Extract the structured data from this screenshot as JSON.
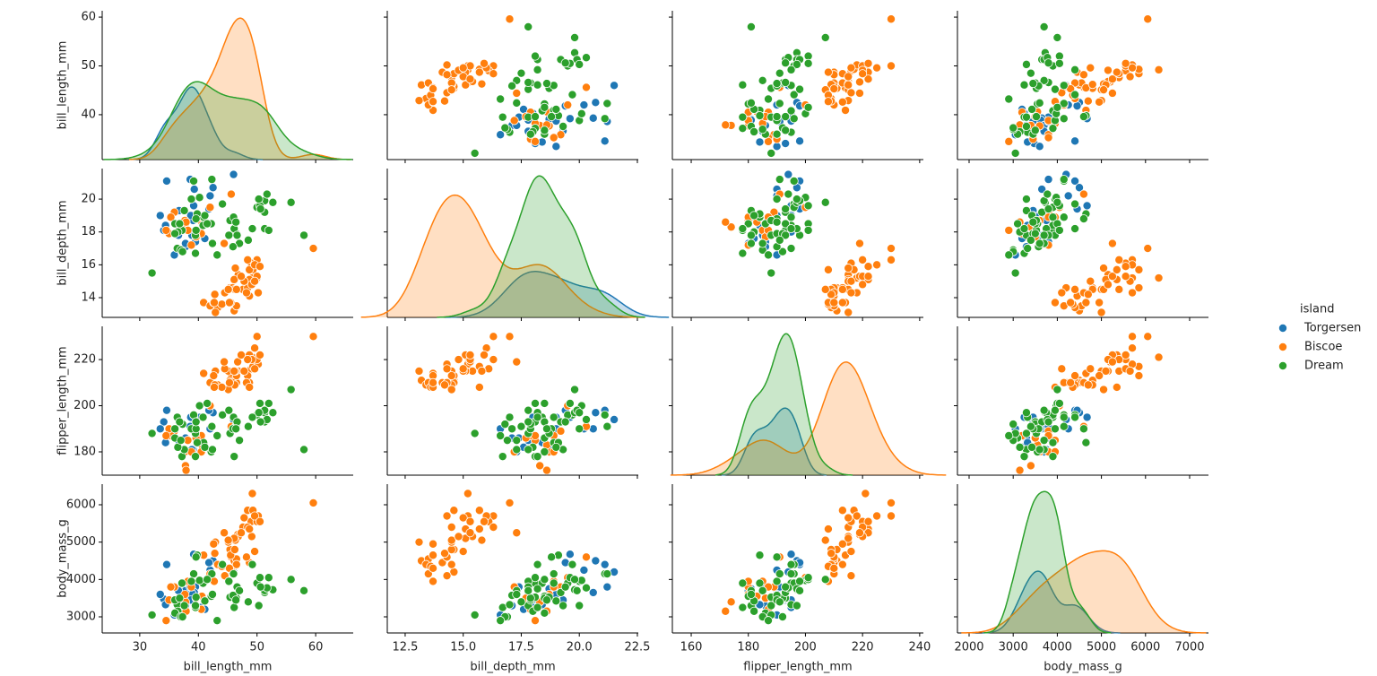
{
  "chart_data": {
    "type": "pairplot",
    "diag_kind": "kde",
    "legend": "right",
    "legend_title": "island",
    "variables": [
      {
        "name": "bill_length_mm",
        "xlim": [
          23.6,
          66.4
        ],
        "ylim": [
          30.8,
          61.3
        ],
        "xticks": [
          30,
          40,
          50,
          60
        ],
        "yticks": [
          40,
          50,
          60
        ]
      },
      {
        "name": "bill_depth_mm",
        "xlim": [
          11.73,
          22.54
        ],
        "ylim": [
          12.8,
          21.86
        ],
        "xticks": [
          12.5,
          {
            "value": 15,
            "label": "15.0"
          },
          17.5,
          {
            "value": 20,
            "label": "20.0"
          },
          22.5
        ],
        "yticks": [
          14,
          16,
          18,
          20
        ]
      },
      {
        "name": "flipper_length_mm",
        "xlim": [
          153.4,
          241.3
        ],
        "ylim": [
          169.9,
          234.4
        ],
        "xticks": [
          160,
          180,
          200,
          220,
          240
        ],
        "yticks": [
          180,
          200,
          220
        ]
      },
      {
        "name": "body_mass_g",
        "xlim": [
          1736,
          7427
        ],
        "ylim": [
          2568,
          6552
        ],
        "xticks": [
          2000,
          3000,
          4000,
          5000,
          6000,
          7000
        ],
        "yticks": [
          3000,
          4000,
          5000,
          6000
        ]
      }
    ],
    "series": [
      {
        "name": "Torgersen",
        "color": "#1f77b4",
        "bill_length_mm": [
          39.1,
          39.5,
          40.3,
          36.7,
          39.3,
          38.9,
          39.2,
          34.1,
          42.0,
          37.8,
          37.8,
          41.1,
          38.6,
          34.6,
          36.6,
          38.7,
          42.5,
          34.4,
          46.0,
          35.9,
          41.8,
          33.5
        ],
        "bill_depth_mm": [
          18.7,
          17.4,
          18.0,
          19.3,
          20.6,
          17.8,
          19.6,
          18.1,
          20.2,
          17.1,
          17.3,
          17.6,
          21.2,
          21.1,
          17.8,
          19.0,
          20.7,
          18.4,
          21.5,
          16.6,
          19.4,
          19.0
        ],
        "flipper_length_mm": [
          181,
          186,
          195,
          193,
          190,
          181,
          195,
          193,
          190,
          186,
          180,
          182,
          191,
          198,
          185,
          195,
          197,
          184,
          194,
          190,
          198,
          190
        ],
        "body_mass_g": [
          3750,
          3800,
          3250,
          3450,
          3650,
          3625,
          4675,
          3475,
          4250,
          3300,
          3700,
          3200,
          3800,
          4400,
          3700,
          3450,
          4500,
          3325,
          4200,
          3050,
          4450,
          3600
        ]
      },
      {
        "name": "Biscoe",
        "color": "#ff7f0e",
        "bill_length_mm": [
          37.8,
          37.7,
          35.9,
          38.2,
          38.8,
          35.3,
          40.6,
          40.5,
          37.9,
          40.5,
          39.6,
          35.0,
          42.0,
          34.5,
          45.6,
          46.1,
          50.0,
          48.7,
          50.0,
          47.6,
          46.5,
          45.4,
          46.7,
          43.3,
          46.8,
          40.9,
          49.0,
          45.5,
          48.4,
          45.8,
          49.3,
          42.0,
          49.2,
          46.2,
          48.7,
          50.2,
          45.1,
          46.5,
          46.3,
          42.9,
          46.1,
          44.5,
          47.8,
          48.2,
          50.0,
          47.3,
          42.8,
          45.1,
          59.6,
          49.1,
          48.4,
          42.6,
          44.4,
          44.0,
          48.7,
          42.7,
          49.6,
          45.3,
          49.6,
          50.5
        ],
        "bill_depth_mm": [
          18.3,
          18.7,
          19.2,
          18.1,
          17.2,
          18.9,
          18.6,
          17.9,
          18.6,
          18.9,
          17.7,
          17.9,
          19.5,
          18.1,
          20.3,
          13.2,
          16.3,
          14.1,
          15.2,
          14.5,
          13.5,
          14.6,
          15.3,
          13.4,
          15.4,
          13.7,
          16.1,
          13.7,
          14.6,
          14.6,
          15.7,
          13.5,
          15.2,
          14.5,
          15.1,
          14.3,
          14.5,
          14.5,
          15.8,
          13.1,
          15.1,
          14.3,
          15.0,
          14.3,
          15.3,
          15.3,
          14.2,
          14.5,
          17.0,
          14.8,
          16.3,
          13.7,
          17.3,
          13.6,
          15.7,
          13.7,
          16.0,
          13.7,
          15.0,
          15.9
        ],
        "flipper_length_mm": [
          174,
          180,
          189,
          185,
          180,
          187,
          183,
          187,
          172,
          180,
          186,
          190,
          200,
          187,
          191,
          211,
          230,
          210,
          218,
          215,
          210,
          211,
          219,
          209,
          215,
          214,
          216,
          214,
          213,
          210,
          217,
          210,
          221,
          209,
          222,
          218,
          215,
          213,
          215,
          215,
          215,
          216,
          215,
          210,
          220,
          222,
          209,
          207,
          230,
          220,
          220,
          213,
          219,
          208,
          208,
          208,
          225,
          210,
          216,
          222
        ],
        "body_mass_g": [
          3400,
          3600,
          3800,
          3950,
          3800,
          3800,
          3550,
          3200,
          3150,
          3950,
          3500,
          3450,
          4050,
          2900,
          4600,
          4500,
          5700,
          4450,
          5700,
          5400,
          4550,
          4800,
          5200,
          4400,
          5150,
          4650,
          5550,
          4650,
          5850,
          4200,
          5850,
          4150,
          6300,
          4800,
          5350,
          5700,
          5000,
          4400,
          5050,
          5000,
          5100,
          4100,
          5650,
          4600,
          5550,
          5250,
          4700,
          5050,
          6050,
          5150,
          5400,
          4950,
          5250,
          4350,
          5350,
          3950,
          5700,
          4300,
          4750,
          5550
        ]
      },
      {
        "name": "Dream",
        "color": "#2ca02c",
        "bill_length_mm": [
          39.5,
          37.2,
          39.5,
          40.9,
          36.4,
          39.2,
          38.8,
          42.2,
          37.6,
          39.8,
          36.5,
          40.8,
          36.0,
          44.1,
          37.0,
          39.6,
          41.1,
          36.0,
          42.3,
          32.1,
          40.2,
          37.3,
          39.6,
          36.8,
          41.5,
          46.5,
          50.0,
          51.3,
          45.4,
          52.7,
          45.2,
          46.1,
          51.3,
          46.0,
          51.3,
          46.6,
          51.7,
          47.0,
          52.0,
          45.9,
          50.5,
          50.3,
          58.0,
          46.4,
          49.2,
          42.4,
          48.5,
          43.2,
          50.6,
          55.8
        ],
        "bill_depth_mm": [
          16.7,
          18.1,
          17.8,
          18.9,
          17.0,
          21.1,
          20.0,
          18.5,
          19.3,
          19.1,
          18.0,
          18.4,
          18.5,
          19.7,
          16.9,
          18.8,
          19.0,
          17.9,
          21.2,
          15.5,
          20.1,
          16.8,
          18.1,
          18.5,
          18.5,
          17.9,
          19.5,
          19.2,
          18.7,
          19.8,
          17.8,
          18.2,
          18.2,
          18.9,
          19.9,
          17.8,
          20.3,
          17.3,
          18.1,
          17.1,
          19.6,
          20.0,
          17.8,
          18.6,
          18.2,
          17.3,
          17.5,
          16.6,
          19.4,
          19.8
        ],
        "flipper_length_mm": [
          178,
          178,
          188,
          184,
          195,
          196,
          190,
          180,
          181,
          184,
          182,
          195,
          186,
          196,
          185,
          190,
          182,
          190,
          191,
          188,
          200,
          192,
          193,
          193,
          201,
          192,
          196,
          193,
          188,
          197,
          198,
          178,
          197,
          195,
          198,
          193,
          194,
          185,
          201,
          190,
          201,
          197,
          181,
          190,
          195,
          181,
          191,
          187,
          193,
          207
        ],
        "body_mass_g": [
          3250,
          3900,
          3300,
          3900,
          3325,
          4150,
          3950,
          3550,
          3300,
          4650,
          3150,
          3900,
          3100,
          4400,
          3000,
          4600,
          3425,
          3450,
          4150,
          3050,
          3975,
          3000,
          3525,
          3500,
          4000,
          3500,
          3900,
          3650,
          3525,
          3725,
          3950,
          3250,
          3750,
          4150,
          3700,
          3800,
          3775,
          3700,
          4050,
          3575,
          4050,
          3300,
          3700,
          3450,
          4400,
          3600,
          3400,
          2900,
          3800,
          4000
        ]
      }
    ]
  }
}
